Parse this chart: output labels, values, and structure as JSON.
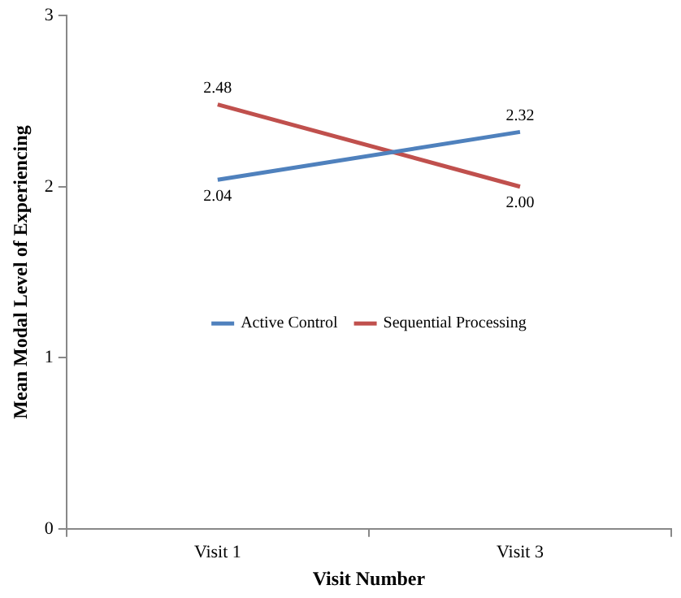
{
  "chart_data": {
    "type": "line",
    "xlabel": "Visit Number",
    "ylabel": "Mean Modal Level of Experiencing",
    "categories": [
      "Visit 1",
      "Visit 3"
    ],
    "series": [
      {
        "name": "Active Control",
        "color": "#4f81bd",
        "values": [
          2.04,
          2.32
        ],
        "value_labels": [
          "2.04",
          "2.32"
        ]
      },
      {
        "name": "Sequential Processing",
        "color": "#c0504d",
        "values": [
          2.48,
          2.0
        ],
        "value_labels": [
          "2.48",
          "2.00"
        ]
      }
    ],
    "ylim": [
      0,
      3
    ],
    "yticks": [
      0,
      1,
      2,
      3
    ],
    "grid": false,
    "legend": "center",
    "marker": "none",
    "line_style": "solid"
  }
}
